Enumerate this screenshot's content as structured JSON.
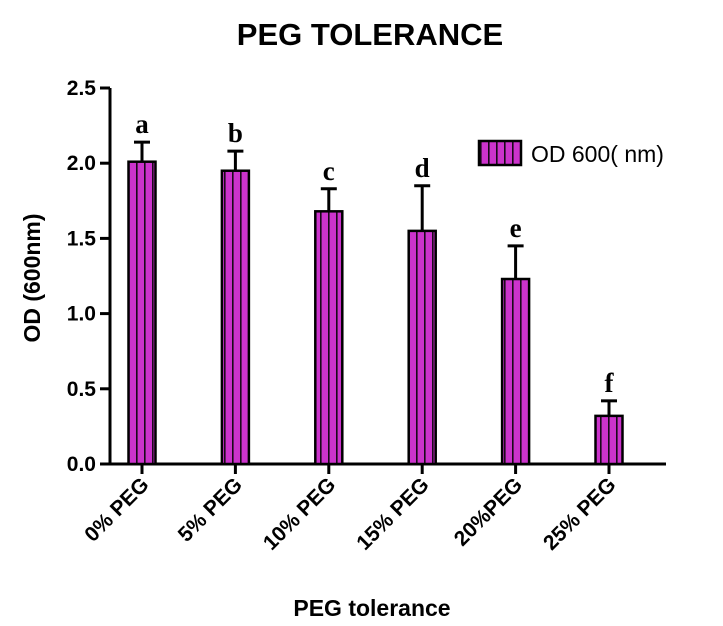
{
  "chart_data": {
    "type": "bar",
    "title": "PEG TOLERANCE",
    "xlabel": "PEG tolerance",
    "ylabel": "OD (600nm)",
    "categories": [
      "0% PEG",
      "5% PEG",
      "10% PEG",
      "15% PEG",
      "20%PEG",
      "25% PEG"
    ],
    "series": [
      {
        "name": "OD 600( nm)",
        "values": [
          2.01,
          1.95,
          1.68,
          1.55,
          1.23,
          0.32
        ],
        "errors": [
          0.13,
          0.13,
          0.15,
          0.3,
          0.22,
          0.1
        ],
        "significance": [
          "a",
          "b",
          "c",
          "d",
          "e",
          "f"
        ]
      }
    ],
    "ylim": [
      0,
      2.5
    ],
    "yticks": [
      "0.0",
      "0.5",
      "1.0",
      "1.5",
      "2.0",
      "2.5"
    ],
    "legend_position": "top-right",
    "grid": false,
    "colors": {
      "bar_fill": "#cc33cc",
      "bar_stripe": "#1a0a1a",
      "axis": "#000000"
    }
  }
}
